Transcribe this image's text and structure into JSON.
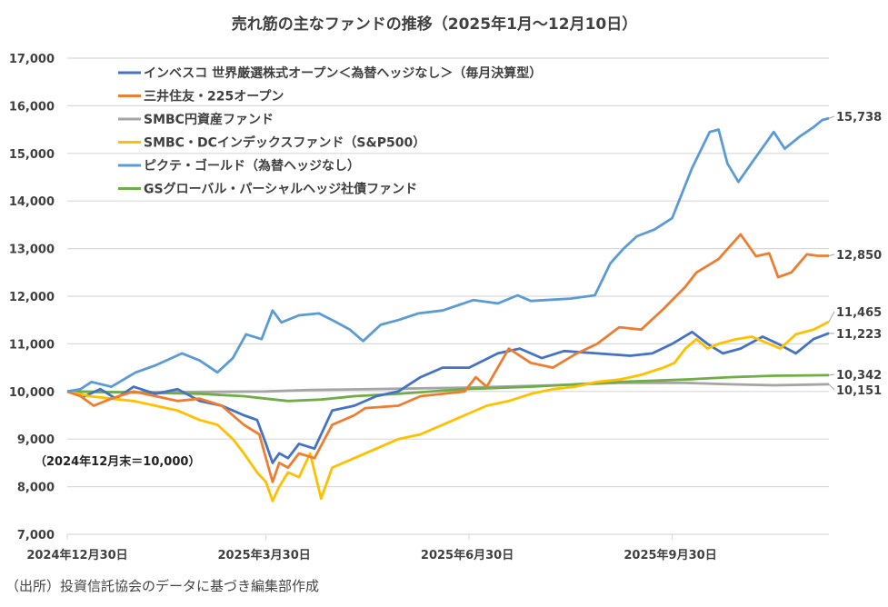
{
  "chart_data": {
    "type": "line",
    "title": "売れ筋の主なファンドの推移（2025年1月～12月10日）",
    "annotation": "（2024年12月末＝10,000）",
    "xlabel": "",
    "ylabel": "",
    "ylim": [
      7000,
      17000
    ],
    "yticks": [
      7000,
      8000,
      9000,
      10000,
      11000,
      12000,
      13000,
      14000,
      15000,
      16000,
      17000
    ],
    "ytick_labels": [
      "7,000",
      "8,000",
      "9,000",
      "10,000",
      "11,000",
      "12,000",
      "13,000",
      "14,000",
      "15,000",
      "16,000",
      "17,000"
    ],
    "x_unit": "days since 2024-12-30",
    "xlim": [
      0,
      345
    ],
    "xticks": [
      0,
      90,
      182,
      274
    ],
    "xtick_labels": [
      "2024年12月30日",
      "2025年3月30日",
      "2025年6月30日",
      "2025年9月30日"
    ],
    "grid": true,
    "legend_position": "top-left",
    "series": [
      {
        "name": "インベスコ 世界厳選株式オープン＜為替ヘッジなし＞（毎月決算型）",
        "color": "#4472C4",
        "end_label": "11,223",
        "points": [
          [
            0,
            10000
          ],
          [
            8,
            9900
          ],
          [
            15,
            10050
          ],
          [
            22,
            9850
          ],
          [
            30,
            10100
          ],
          [
            40,
            9950
          ],
          [
            50,
            10050
          ],
          [
            60,
            9800
          ],
          [
            70,
            9700
          ],
          [
            80,
            9500
          ],
          [
            86,
            9400
          ],
          [
            90,
            8900
          ],
          [
            93,
            8500
          ],
          [
            96,
            8700
          ],
          [
            100,
            8600
          ],
          [
            105,
            8900
          ],
          [
            112,
            8800
          ],
          [
            120,
            9600
          ],
          [
            130,
            9700
          ],
          [
            140,
            9900
          ],
          [
            150,
            10000
          ],
          [
            160,
            10300
          ],
          [
            170,
            10500
          ],
          [
            182,
            10500
          ],
          [
            195,
            10800
          ],
          [
            205,
            10900
          ],
          [
            215,
            10700
          ],
          [
            225,
            10850
          ],
          [
            240,
            10800
          ],
          [
            255,
            10750
          ],
          [
            265,
            10800
          ],
          [
            274,
            11000
          ],
          [
            283,
            11250
          ],
          [
            290,
            11000
          ],
          [
            297,
            10800
          ],
          [
            305,
            10900
          ],
          [
            315,
            11150
          ],
          [
            322,
            11000
          ],
          [
            330,
            10800
          ],
          [
            338,
            11100
          ],
          [
            345,
            11223
          ]
        ]
      },
      {
        "name": "三井住友・225オープン",
        "color": "#ED7D31",
        "end_label": "12,850",
        "points": [
          [
            0,
            10000
          ],
          [
            6,
            9900
          ],
          [
            12,
            9700
          ],
          [
            20,
            9850
          ],
          [
            30,
            10000
          ],
          [
            40,
            9900
          ],
          [
            50,
            9800
          ],
          [
            60,
            9850
          ],
          [
            70,
            9700
          ],
          [
            80,
            9300
          ],
          [
            87,
            9100
          ],
          [
            90,
            8600
          ],
          [
            93,
            8100
          ],
          [
            96,
            8500
          ],
          [
            100,
            8400
          ],
          [
            105,
            8700
          ],
          [
            112,
            8600
          ],
          [
            120,
            9300
          ],
          [
            130,
            9500
          ],
          [
            135,
            9650
          ],
          [
            150,
            9700
          ],
          [
            160,
            9900
          ],
          [
            170,
            9950
          ],
          [
            180,
            10000
          ],
          [
            185,
            10300
          ],
          [
            190,
            10100
          ],
          [
            200,
            10900
          ],
          [
            210,
            10600
          ],
          [
            220,
            10500
          ],
          [
            230,
            10780
          ],
          [
            240,
            11000
          ],
          [
            250,
            11350
          ],
          [
            260,
            11300
          ],
          [
            270,
            11730
          ],
          [
            280,
            12200
          ],
          [
            285,
            12500
          ],
          [
            295,
            12780
          ],
          [
            305,
            13300
          ],
          [
            312,
            12840
          ],
          [
            318,
            12900
          ],
          [
            322,
            12400
          ],
          [
            328,
            12500
          ],
          [
            335,
            12880
          ],
          [
            340,
            12850
          ],
          [
            345,
            12850
          ]
        ]
      },
      {
        "name": "SMBC円資産ファンド",
        "color": "#A5A5A5",
        "end_label": "10,151",
        "points": [
          [
            0,
            10000
          ],
          [
            30,
            9980
          ],
          [
            60,
            9990
          ],
          [
            90,
            10000
          ],
          [
            110,
            10030
          ],
          [
            140,
            10050
          ],
          [
            180,
            10080
          ],
          [
            220,
            10130
          ],
          [
            250,
            10180
          ],
          [
            280,
            10180
          ],
          [
            300,
            10150
          ],
          [
            320,
            10130
          ],
          [
            345,
            10151
          ]
        ]
      },
      {
        "name": "SMBC・DCインデックスファンド（S&P500）",
        "color": "#FFC000",
        "end_label": "11,465",
        "points": [
          [
            0,
            10000
          ],
          [
            10,
            9900
          ],
          [
            20,
            9850
          ],
          [
            30,
            9800
          ],
          [
            40,
            9700
          ],
          [
            50,
            9600
          ],
          [
            60,
            9400
          ],
          [
            68,
            9300
          ],
          [
            75,
            9000
          ],
          [
            80,
            8700
          ],
          [
            86,
            8300
          ],
          [
            90,
            8100
          ],
          [
            93,
            7700
          ],
          [
            96,
            8000
          ],
          [
            100,
            8300
          ],
          [
            105,
            8200
          ],
          [
            110,
            8700
          ],
          [
            115,
            7750
          ],
          [
            120,
            8400
          ],
          [
            130,
            8600
          ],
          [
            140,
            8800
          ],
          [
            150,
            9000
          ],
          [
            160,
            9100
          ],
          [
            170,
            9300
          ],
          [
            180,
            9500
          ],
          [
            190,
            9700
          ],
          [
            200,
            9800
          ],
          [
            210,
            9950
          ],
          [
            220,
            10050
          ],
          [
            230,
            10100
          ],
          [
            240,
            10200
          ],
          [
            250,
            10250
          ],
          [
            260,
            10350
          ],
          [
            270,
            10500
          ],
          [
            275,
            10600
          ],
          [
            280,
            10900
          ],
          [
            285,
            11100
          ],
          [
            290,
            10900
          ],
          [
            295,
            11000
          ],
          [
            303,
            11100
          ],
          [
            310,
            11150
          ],
          [
            318,
            11000
          ],
          [
            323,
            10900
          ],
          [
            330,
            11200
          ],
          [
            338,
            11300
          ],
          [
            345,
            11465
          ]
        ]
      },
      {
        "name": "ピクテ・ゴールド（為替ヘッジなし）",
        "color": "#5B9BD5",
        "end_label": "15,738",
        "points": [
          [
            0,
            10000
          ],
          [
            6,
            10050
          ],
          [
            11,
            10200
          ],
          [
            20,
            10100
          ],
          [
            31,
            10400
          ],
          [
            40,
            10550
          ],
          [
            52,
            10800
          ],
          [
            60,
            10650
          ],
          [
            68,
            10400
          ],
          [
            75,
            10700
          ],
          [
            81,
            11200
          ],
          [
            88,
            11100
          ],
          [
            93,
            11700
          ],
          [
            97,
            11450
          ],
          [
            105,
            11600
          ],
          [
            114,
            11640
          ],
          [
            120,
            11500
          ],
          [
            128,
            11300
          ],
          [
            134,
            11060
          ],
          [
            142,
            11400
          ],
          [
            150,
            11500
          ],
          [
            159,
            11640
          ],
          [
            170,
            11700
          ],
          [
            184,
            11920
          ],
          [
            195,
            11850
          ],
          [
            204,
            12020
          ],
          [
            210,
            11900
          ],
          [
            217,
            11920
          ],
          [
            228,
            11950
          ],
          [
            239,
            12020
          ],
          [
            246,
            12690
          ],
          [
            252,
            13000
          ],
          [
            258,
            13260
          ],
          [
            266,
            13400
          ],
          [
            274,
            13640
          ],
          [
            283,
            14690
          ],
          [
            291,
            15450
          ],
          [
            295,
            15500
          ],
          [
            299,
            14790
          ],
          [
            304,
            14400
          ],
          [
            310,
            14800
          ],
          [
            320,
            15450
          ],
          [
            325,
            15100
          ],
          [
            332,
            15360
          ],
          [
            338,
            15550
          ],
          [
            342,
            15700
          ],
          [
            345,
            15738
          ]
        ]
      },
      {
        "name": "GSグローバル・パーシャルヘッジ社債ファンド",
        "color": "#70AD47",
        "end_label": "10,342",
        "points": [
          [
            0,
            10000
          ],
          [
            30,
            9980
          ],
          [
            60,
            9950
          ],
          [
            80,
            9900
          ],
          [
            90,
            9850
          ],
          [
            100,
            9800
          ],
          [
            115,
            9830
          ],
          [
            130,
            9900
          ],
          [
            150,
            9950
          ],
          [
            180,
            10050
          ],
          [
            210,
            10100
          ],
          [
            250,
            10200
          ],
          [
            280,
            10250
          ],
          [
            300,
            10300
          ],
          [
            320,
            10330
          ],
          [
            345,
            10342
          ]
        ]
      }
    ]
  },
  "source_note": "（出所）投資信託協会のデータに基づき編集部作成"
}
